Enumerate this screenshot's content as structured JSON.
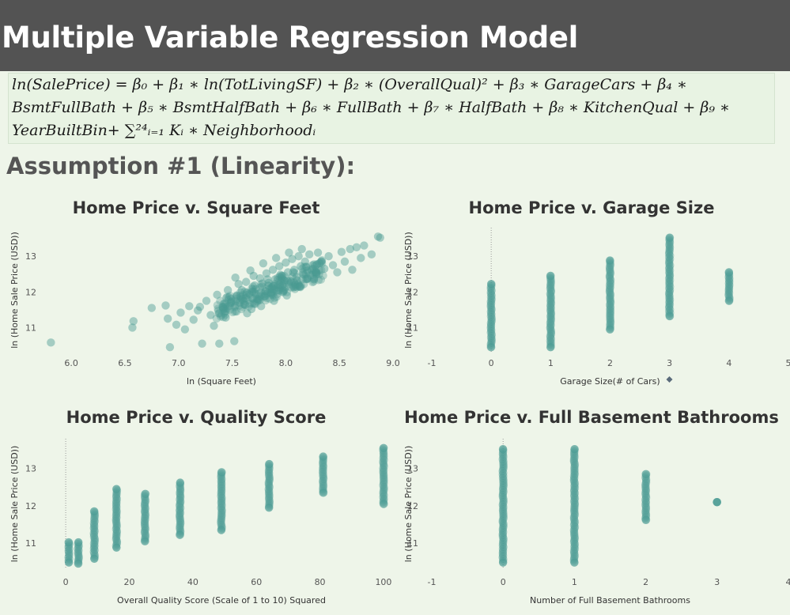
{
  "header": {
    "title": "Multiple Variable Regression Model"
  },
  "formula": {
    "line1": "ln(SalePrice) = β₀ + β₁ ∗ ln(TotLivingSF) + β₂ ∗ (OverallQual)² + β₃ ∗ GarageCars + β₄ ∗",
    "line2": "BsmtFullBath + β₅ ∗ BsmtHalfBath + β₆ ∗ FullBath + β₇ ∗ HalfBath + β₈ ∗ KitchenQual + β₉ ∗",
    "line3": "YearBuiltBin+ ∑²⁴ᵢ₌₁ Kᵢ ∗ Neighborhoodᵢ"
  },
  "assumption_title": "Assumption #1 (Linearity):",
  "colors": {
    "point": "#4a9b93",
    "header_bg": "#535353",
    "background": "#eef5e9"
  },
  "icons": {
    "pin": "pin-icon"
  },
  "chart_data": [
    {
      "type": "scatter",
      "title": "Home Price v. Square Feet",
      "xlabel": "ln (Square Feet)",
      "ylabel": "ln (Home Sale Price (USD))",
      "xticks": [
        "6.0",
        "6.5",
        "7.0",
        "7.5",
        "8.0",
        "8.5",
        "9.0"
      ],
      "yticks": [
        "11",
        "12",
        "13"
      ],
      "xlim": [
        5.8,
        9.0
      ],
      "ylim": [
        10.3,
        13.8
      ],
      "points": [
        [
          5.81,
          10.58
        ],
        [
          6.57,
          11.0
        ],
        [
          6.58,
          11.18
        ],
        [
          6.75,
          11.55
        ],
        [
          6.88,
          11.62
        ],
        [
          6.9,
          11.25
        ],
        [
          6.92,
          10.45
        ],
        [
          6.98,
          11.08
        ],
        [
          7.02,
          11.42
        ],
        [
          7.06,
          10.95
        ],
        [
          7.1,
          11.6
        ],
        [
          7.14,
          11.22
        ],
        [
          7.18,
          11.48
        ],
        [
          7.22,
          10.55
        ],
        [
          7.26,
          11.75
        ],
        [
          7.3,
          11.35
        ],
        [
          7.33,
          11.05
        ],
        [
          7.36,
          11.92
        ],
        [
          7.38,
          10.55
        ],
        [
          7.41,
          11.58
        ],
        [
          7.44,
          11.28
        ],
        [
          7.46,
          12.05
        ],
        [
          7.49,
          11.72
        ],
        [
          7.52,
          10.62
        ],
        [
          7.54,
          11.45
        ],
        [
          7.56,
          12.22
        ],
        [
          7.58,
          11.85
        ],
        [
          7.61,
          11.65
        ],
        [
          7.63,
          12.28
        ],
        [
          7.66,
          11.95
        ],
        [
          7.68,
          11.52
        ],
        [
          7.7,
          12.45
        ],
        [
          7.72,
          12.08
        ],
        [
          7.74,
          11.78
        ],
        [
          7.76,
          12.38
        ],
        [
          7.78,
          12.15
        ],
        [
          7.8,
          11.88
        ],
        [
          7.82,
          12.52
        ],
        [
          7.84,
          12.25
        ],
        [
          7.86,
          11.98
        ],
        [
          7.88,
          12.62
        ],
        [
          7.9,
          12.35
        ],
        [
          7.92,
          12.12
        ],
        [
          7.94,
          12.72
        ],
        [
          7.96,
          12.45
        ],
        [
          7.98,
          12.22
        ],
        [
          8.0,
          12.82
        ],
        [
          8.02,
          12.55
        ],
        [
          8.04,
          12.32
        ],
        [
          8.06,
          12.92
        ],
        [
          8.08,
          12.62
        ],
        [
          8.1,
          12.42
        ],
        [
          8.12,
          13.0
        ],
        [
          8.14,
          12.72
        ],
        [
          8.16,
          12.5
        ],
        [
          8.18,
          12.85
        ],
        [
          8.2,
          12.6
        ],
        [
          8.22,
          13.05
        ],
        [
          8.25,
          12.75
        ],
        [
          8.28,
          12.55
        ],
        [
          8.3,
          13.1
        ],
        [
          8.33,
          12.85
        ],
        [
          8.36,
          12.65
        ],
        [
          8.4,
          13.0
        ],
        [
          8.44,
          12.75
        ],
        [
          8.48,
          12.55
        ],
        [
          8.52,
          13.12
        ],
        [
          8.55,
          12.85
        ],
        [
          8.6,
          13.2
        ],
        [
          8.62,
          12.62
        ],
        [
          8.66,
          13.25
        ],
        [
          8.7,
          12.95
        ],
        [
          8.73,
          13.3
        ],
        [
          8.8,
          13.05
        ],
        [
          8.86,
          13.55
        ],
        [
          8.88,
          13.52
        ],
        [
          7.2,
          11.58
        ],
        [
          7.47,
          11.85
        ],
        [
          7.59,
          12.05
        ],
        [
          7.71,
          12.18
        ],
        [
          7.83,
          12.35
        ],
        [
          7.95,
          12.48
        ],
        [
          8.07,
          12.55
        ],
        [
          8.19,
          12.7
        ],
        [
          7.64,
          11.4
        ],
        [
          7.77,
          11.6
        ],
        [
          7.89,
          11.75
        ],
        [
          8.01,
          11.9
        ],
        [
          7.53,
          12.4
        ],
        [
          7.67,
          12.6
        ],
        [
          7.79,
          12.8
        ],
        [
          7.91,
          12.95
        ],
        [
          8.03,
          13.1
        ],
        [
          8.15,
          13.2
        ],
        [
          7.43,
          11.68
        ],
        [
          7.57,
          11.7
        ],
        [
          7.69,
          11.82
        ],
        [
          7.81,
          12.02
        ],
        [
          7.93,
          12.18
        ],
        [
          8.05,
          12.28
        ]
      ]
    },
    {
      "type": "scatter",
      "title": "Home Price v. Garage Size",
      "xlabel": "Garage Size(# of Cars)",
      "ylabel": "ln (Home Sale Price (USD))",
      "xticks": [
        "-1",
        "0",
        "1",
        "2",
        "3",
        "4",
        "5"
      ],
      "yticks": [
        "11",
        "12",
        "13"
      ],
      "xlim": [
        -1,
        5
      ],
      "ylim": [
        10.3,
        13.8
      ],
      "columns": [
        {
          "x": 0,
          "min": 10.45,
          "max": 12.22
        },
        {
          "x": 1,
          "min": 10.45,
          "max": 12.45
        },
        {
          "x": 2,
          "min": 10.95,
          "max": 12.88
        },
        {
          "x": 3,
          "min": 11.32,
          "max": 13.52
        },
        {
          "x": 4,
          "min": 11.75,
          "max": 12.55
        }
      ]
    },
    {
      "type": "scatter",
      "title": "Home Price v. Quality Score",
      "xlabel": "Overall Quality Score (Scale of 1 to 10) Squared",
      "ylabel": "ln (Home Sale Price (USD))",
      "xticks": [
        "0",
        "20",
        "40",
        "60",
        "80",
        "100"
      ],
      "yticks": [
        "11",
        "12",
        "13"
      ],
      "xlim": [
        -5,
        103
      ],
      "ylim": [
        10.3,
        13.8
      ],
      "columns": [
        {
          "x": 1,
          "min": 10.48,
          "max": 11.02
        },
        {
          "x": 4,
          "min": 10.45,
          "max": 11.02
        },
        {
          "x": 9,
          "min": 10.58,
          "max": 11.85
        },
        {
          "x": 16,
          "min": 10.88,
          "max": 12.45
        },
        {
          "x": 25,
          "min": 11.05,
          "max": 12.32
        },
        {
          "x": 36,
          "min": 11.22,
          "max": 12.62
        },
        {
          "x": 49,
          "min": 11.35,
          "max": 12.9
        },
        {
          "x": 64,
          "min": 11.95,
          "max": 13.12
        },
        {
          "x": 81,
          "min": 12.35,
          "max": 13.32
        },
        {
          "x": 100,
          "min": 12.05,
          "max": 13.55
        }
      ]
    },
    {
      "type": "scatter",
      "title": "Home Price v. Full Basement Bathrooms",
      "xlabel": "Number of Full Basement Bathrooms",
      "ylabel": "ln (Home Sale Price (USD))",
      "xticks": [
        "-1",
        "0",
        "1",
        "2",
        "3",
        "4"
      ],
      "yticks": [
        "11",
        "12",
        "13"
      ],
      "xlim": [
        -1,
        4
      ],
      "ylim": [
        10.3,
        13.8
      ],
      "columns": [
        {
          "x": 0,
          "min": 10.48,
          "max": 13.52
        },
        {
          "x": 1,
          "min": 10.48,
          "max": 13.52
        },
        {
          "x": 2,
          "min": 11.62,
          "max": 12.85
        },
        {
          "x": 3,
          "min": 12.1,
          "max": 12.1
        }
      ]
    }
  ]
}
